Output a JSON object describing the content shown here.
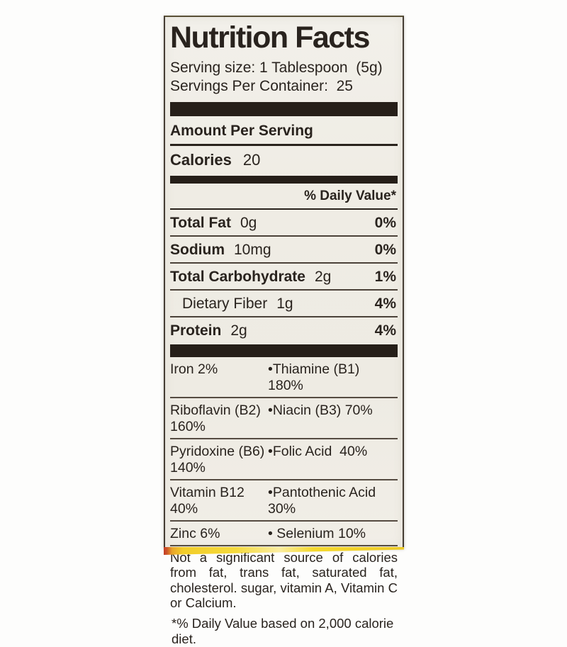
{
  "label": {
    "title": "Nutrition Facts",
    "serving_size_line": "Serving size: 1 Tablespoon  (5g)",
    "servings_per_container_line": "Servings Per Container:  25",
    "amount_per_serving": "Amount Per Serving",
    "calories": {
      "label": "Calories",
      "value": "20"
    },
    "daily_value_header": "% Daily Value*",
    "nutrients": [
      {
        "name": "Total Fat",
        "amount": "0g",
        "dv": "0%"
      },
      {
        "name": "Sodium",
        "amount": "10mg",
        "dv": "0%"
      },
      {
        "name": "Total Carbohydrate",
        "amount": "2g",
        "dv": "1%"
      },
      {
        "name": "Dietary Fiber",
        "amount": "1g",
        "dv": "4%"
      },
      {
        "name": "Protein",
        "amount": "2g",
        "dv": "4%"
      }
    ],
    "micronutrients": [
      {
        "left": "Iron 2%",
        "right": "•Thiamine (B1) 180%"
      },
      {
        "left": "Riboflavin (B2) 160%",
        "right": "•Niacin (B3) 70%"
      },
      {
        "left": "Pyridoxine (B6) 140%",
        "right": "•Folic Acid  40%"
      },
      {
        "left": "Vitamin B12 40%",
        "right": "•Pantothenic Acid 30%"
      },
      {
        "left": "Zinc 6%",
        "right": "• Selenium 10%"
      }
    ],
    "disclaimer": "Not a significant source of calories from fat, trans fat, saturated fat, cholesterol. sugar, vitamin A, Vitamin C or Calcium.",
    "footnote": "*% Daily Value based on 2,000 calorie diet."
  },
  "colors": {
    "label_background": "#efece4",
    "ink": "#29231e",
    "bar": "#261f19",
    "stripe_yellow": "#f2cd28",
    "stripe_red": "#c23a27"
  }
}
